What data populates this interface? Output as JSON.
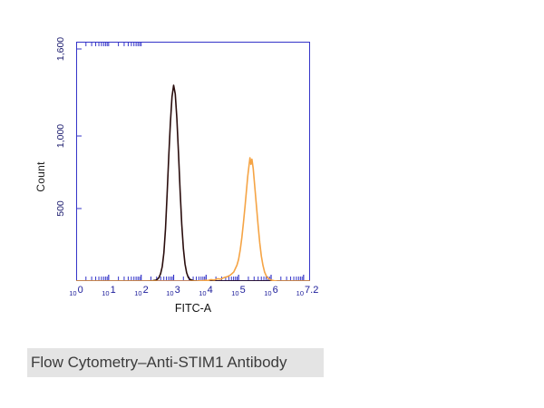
{
  "caption": "Flow Cytometry–Anti-STIM1 Antibody",
  "chart_data": {
    "type": "line",
    "xlabel": "FITC-A",
    "ylabel": "Count",
    "x_scale": "log",
    "x_log_max": 7.2,
    "y_max": 1650,
    "grid": false,
    "legend": "none",
    "axis_color": "#3434c8",
    "tick_label_color": "#1b1b9a",
    "x_ticks": [
      {
        "base": "10",
        "exp": "0",
        "log": 0
      },
      {
        "base": "10",
        "exp": "1",
        "log": 1
      },
      {
        "base": "10",
        "exp": "2",
        "log": 2
      },
      {
        "base": "10",
        "exp": "3",
        "log": 3
      },
      {
        "base": "10",
        "exp": "4",
        "log": 4
      },
      {
        "base": "10",
        "exp": "5",
        "log": 5
      },
      {
        "base": "10",
        "exp": "6",
        "log": 6
      },
      {
        "base": "10",
        "exp": "7.2",
        "log": 7.2
      }
    ],
    "y_ticks": [
      {
        "value": 500,
        "label": "500"
      },
      {
        "value": 1000,
        "label": "1,000"
      },
      {
        "value": 1600,
        "label": "1,600"
      }
    ],
    "series": [
      {
        "name": "dark-peak",
        "color": "#2a0d0d",
        "peak_log_x": 3.0,
        "peak_count": 1350,
        "points": [
          [
            0,
            0
          ],
          [
            2.2,
            0
          ],
          [
            2.35,
            2
          ],
          [
            2.45,
            6
          ],
          [
            2.5,
            12
          ],
          [
            2.55,
            25
          ],
          [
            2.6,
            52
          ],
          [
            2.65,
            100
          ],
          [
            2.7,
            195
          ],
          [
            2.75,
            360
          ],
          [
            2.8,
            600
          ],
          [
            2.85,
            860
          ],
          [
            2.9,
            1090
          ],
          [
            2.95,
            1270
          ],
          [
            3.0,
            1350
          ],
          [
            3.05,
            1290
          ],
          [
            3.1,
            1120
          ],
          [
            3.15,
            880
          ],
          [
            3.2,
            620
          ],
          [
            3.25,
            392
          ],
          [
            3.3,
            225
          ],
          [
            3.35,
            118
          ],
          [
            3.4,
            58
          ],
          [
            3.45,
            26
          ],
          [
            3.5,
            12
          ],
          [
            3.6,
            3
          ],
          [
            3.7,
            0
          ],
          [
            7.2,
            0
          ]
        ]
      },
      {
        "name": "orange-peak",
        "color": "#f5a445",
        "peak_log_x": 5.35,
        "peak_count": 850,
        "points": [
          [
            0,
            0
          ],
          [
            3.7,
            0
          ],
          [
            3.9,
            3
          ],
          [
            4.0,
            6
          ],
          [
            4.05,
            3
          ],
          [
            4.15,
            10
          ],
          [
            4.25,
            7
          ],
          [
            4.35,
            16
          ],
          [
            4.45,
            13
          ],
          [
            4.55,
            24
          ],
          [
            4.65,
            30
          ],
          [
            4.75,
            42
          ],
          [
            4.85,
            62
          ],
          [
            4.95,
            110
          ],
          [
            5.0,
            150
          ],
          [
            5.05,
            215
          ],
          [
            5.1,
            300
          ],
          [
            5.15,
            405
          ],
          [
            5.2,
            520
          ],
          [
            5.25,
            645
          ],
          [
            5.28,
            720
          ],
          [
            5.32,
            795
          ],
          [
            5.35,
            850
          ],
          [
            5.38,
            805
          ],
          [
            5.41,
            840
          ],
          [
            5.45,
            775
          ],
          [
            5.5,
            645
          ],
          [
            5.55,
            515
          ],
          [
            5.6,
            385
          ],
          [
            5.65,
            265
          ],
          [
            5.7,
            172
          ],
          [
            5.75,
            108
          ],
          [
            5.8,
            62
          ],
          [
            5.85,
            36
          ],
          [
            5.9,
            20
          ],
          [
            6.0,
            7
          ],
          [
            6.1,
            2
          ],
          [
            6.2,
            0
          ],
          [
            7.2,
            0
          ]
        ]
      }
    ]
  }
}
